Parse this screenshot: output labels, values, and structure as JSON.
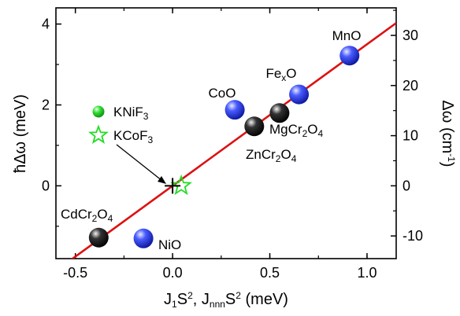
{
  "chart_data": {
    "type": "scatter",
    "x_axis": {
      "label_parts": [
        "J",
        "1",
        "S",
        "2",
        ", J",
        "nnn",
        "S",
        "2",
        " (meV)"
      ],
      "range": [
        -0.6,
        1.15
      ],
      "ticks": [
        -0.5,
        0.0,
        0.5,
        1.0
      ],
      "tick_labels": [
        "-0.5",
        "0.0",
        "0.5",
        "1.0"
      ]
    },
    "y_axis_left": {
      "label": "ħΔω (meV)",
      "range": [
        -1.8,
        4.4
      ],
      "ticks": [
        0,
        2,
        4
      ],
      "tick_labels": [
        "0",
        "2",
        "4"
      ]
    },
    "y_axis_right": {
      "label_parts": [
        "Δω (cm",
        "-1",
        ")"
      ],
      "range_cm": [
        -14.52,
        35.49
      ],
      "ticks_cm": [
        -10,
        0,
        10,
        20,
        30
      ],
      "tick_labels": [
        "-10",
        "0",
        "10",
        "20",
        "30"
      ]
    },
    "fit_line": {
      "slope": 3.5,
      "intercept": 0.0,
      "color": "#dd1111"
    },
    "series": [
      {
        "name": "KNiF3",
        "label_parts": [
          "KNiF",
          "3"
        ],
        "marker": "sphere",
        "color": "#22dd22",
        "x": 0.02,
        "y": 0.0,
        "legend": true
      },
      {
        "name": "KCoF3",
        "label_parts": [
          "KCoF",
          "3"
        ],
        "marker": "star",
        "color": "#22dd22",
        "x": 0.02,
        "y": 0.0,
        "legend": true
      },
      {
        "name": "MnO",
        "label_parts": [
          "MnO"
        ],
        "marker": "sphere",
        "color": "#2233dd",
        "x": 0.91,
        "y": 3.22
      },
      {
        "name": "FexO",
        "label_parts": [
          "Fe",
          "x",
          "O"
        ],
        "marker": "sphere",
        "color": "#2233dd",
        "x": 0.65,
        "y": 2.26
      },
      {
        "name": "CoO",
        "label_parts": [
          "CoO"
        ],
        "marker": "sphere",
        "color": "#2233dd",
        "x": 0.32,
        "y": 1.88
      },
      {
        "name": "NiO",
        "label_parts": [
          "NiO"
        ],
        "marker": "sphere",
        "color": "#2233dd",
        "x": -0.15,
        "y": -1.3
      },
      {
        "name": "MgCr2O4",
        "label_parts": [
          "MgCr",
          "2",
          "O",
          "4"
        ],
        "marker": "sphere",
        "color": "#111111",
        "x": 0.55,
        "y": 1.8
      },
      {
        "name": "ZnCr2O4",
        "label_parts": [
          "ZnCr",
          "2",
          "O",
          "4"
        ],
        "marker": "sphere",
        "color": "#111111",
        "x": 0.42,
        "y": 1.47
      },
      {
        "name": "CdCr2O4",
        "label_parts": [
          "CdCr",
          "2",
          "O",
          "4"
        ],
        "marker": "sphere",
        "color": "#111111",
        "x": -0.38,
        "y": -1.28
      }
    ],
    "grid": false
  }
}
